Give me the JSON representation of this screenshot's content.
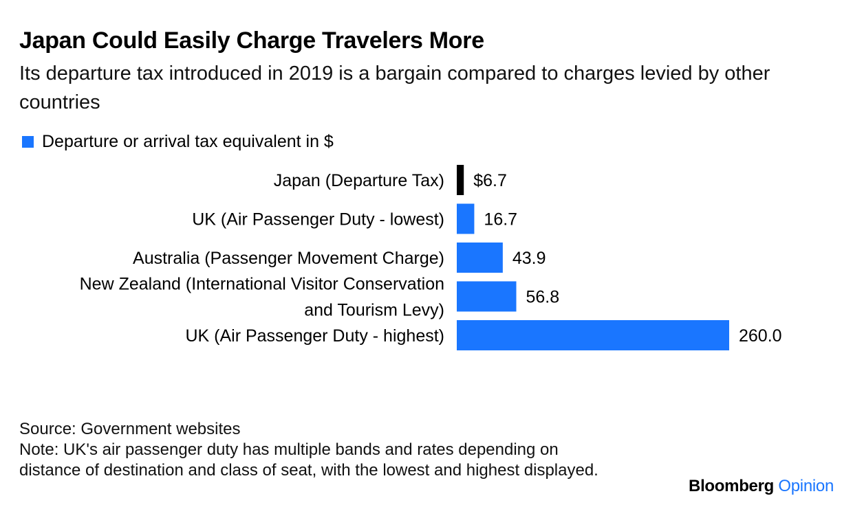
{
  "header": {
    "title": "Japan Could Easily Charge Travelers More",
    "subtitle": "Its departure tax introduced in 2019 is a bargain compared to charges levied by other countries"
  },
  "legend": {
    "label": "Departure or arrival tax equivalent in $",
    "color": "#1a76ff"
  },
  "chart_data": {
    "type": "bar",
    "orientation": "horizontal",
    "categories": [
      "Japan (Departure Tax)",
      "UK (Air Passenger Duty - lowest)",
      "Australia (Passenger Movement Charge)",
      "New Zealand (International Visitor Conservation and Tourism Levy)",
      "UK (Air Passenger Duty - highest)"
    ],
    "category_lines": [
      [
        "Japan (Departure Tax)"
      ],
      [
        "UK (Air Passenger Duty - lowest)"
      ],
      [
        "Australia (Passenger Movement Charge)"
      ],
      [
        "New Zealand (International Visitor Conservation",
        "and Tourism Levy)"
      ],
      [
        "UK (Air Passenger Duty - highest)"
      ]
    ],
    "series": [
      {
        "name": "Departure or arrival tax equivalent in $",
        "values": [
          6.7,
          16.7,
          43.9,
          56.8,
          260.0
        ]
      }
    ],
    "value_labels": [
      "$6.7",
      "16.7",
      "43.9",
      "56.8",
      "260.0"
    ],
    "bar_colors": [
      "#000000",
      "#1a76ff",
      "#1a76ff",
      "#1a76ff",
      "#1a76ff"
    ],
    "xlim": [
      0,
      260
    ],
    "grid": false,
    "legend_position": "top-left"
  },
  "footer": {
    "source": "Source: Government websites",
    "note": "Note: UK's air passenger duty has multiple bands and rates depending on distance of destination and class of seat, with the lowest and highest displayed."
  },
  "brand": {
    "name": "Bloomberg",
    "section": "Opinion"
  }
}
